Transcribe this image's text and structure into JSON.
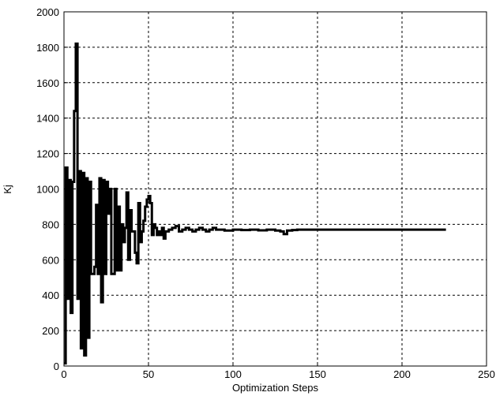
{
  "chart_data": {
    "type": "line",
    "title": "",
    "xlabel": "Optimization Steps",
    "ylabel": "Kj",
    "xlim": [
      0,
      250
    ],
    "ylim": [
      0,
      2000
    ],
    "xticks": [
      "0",
      "50",
      "100",
      "150",
      "200",
      "250"
    ],
    "yticks": [
      "0",
      "200",
      "400",
      "600",
      "800",
      "1000",
      "1200",
      "1400",
      "1600",
      "1800",
      "2000"
    ],
    "grid": true,
    "grid_style": "dashed",
    "line_color": "#000000",
    "series": [
      {
        "name": "",
        "step": true,
        "x": [
          0,
          1,
          2,
          3,
          4,
          5,
          6,
          7,
          8,
          9,
          10,
          11,
          12,
          13,
          14,
          15,
          16,
          17,
          18,
          19,
          20,
          21,
          22,
          23,
          24,
          25,
          26,
          27,
          28,
          29,
          30,
          31,
          32,
          33,
          34,
          35,
          36,
          37,
          38,
          39,
          40,
          41,
          42,
          43,
          44,
          45,
          46,
          47,
          48,
          49,
          50,
          51,
          52,
          53,
          54,
          55,
          56,
          57,
          58,
          59,
          60,
          62,
          64,
          66,
          68,
          70,
          72,
          74,
          76,
          78,
          80,
          82,
          84,
          86,
          88,
          90,
          95,
          100,
          105,
          110,
          115,
          120,
          125,
          128,
          130,
          132,
          135,
          138,
          140,
          150,
          170,
          200,
          226
        ],
        "y": [
          15,
          1120,
          380,
          1050,
          300,
          1040,
          1440,
          1820,
          380,
          1100,
          100,
          1090,
          60,
          1060,
          160,
          1040,
          520,
          520,
          560,
          910,
          520,
          1060,
          360,
          1050,
          520,
          1040,
          860,
          1000,
          520,
          520,
          1000,
          540,
          900,
          540,
          800,
          700,
          780,
          980,
          600,
          880,
          760,
          760,
          640,
          580,
          920,
          700,
          760,
          820,
          900,
          940,
          960,
          920,
          740,
          800,
          780,
          740,
          760,
          740,
          780,
          720,
          760,
          770,
          780,
          790,
          760,
          770,
          780,
          770,
          760,
          770,
          780,
          770,
          760,
          770,
          780,
          770,
          765,
          770,
          768,
          770,
          766,
          770,
          765,
          760,
          745,
          765,
          768,
          770,
          770,
          770,
          770,
          770,
          770
        ]
      }
    ]
  }
}
